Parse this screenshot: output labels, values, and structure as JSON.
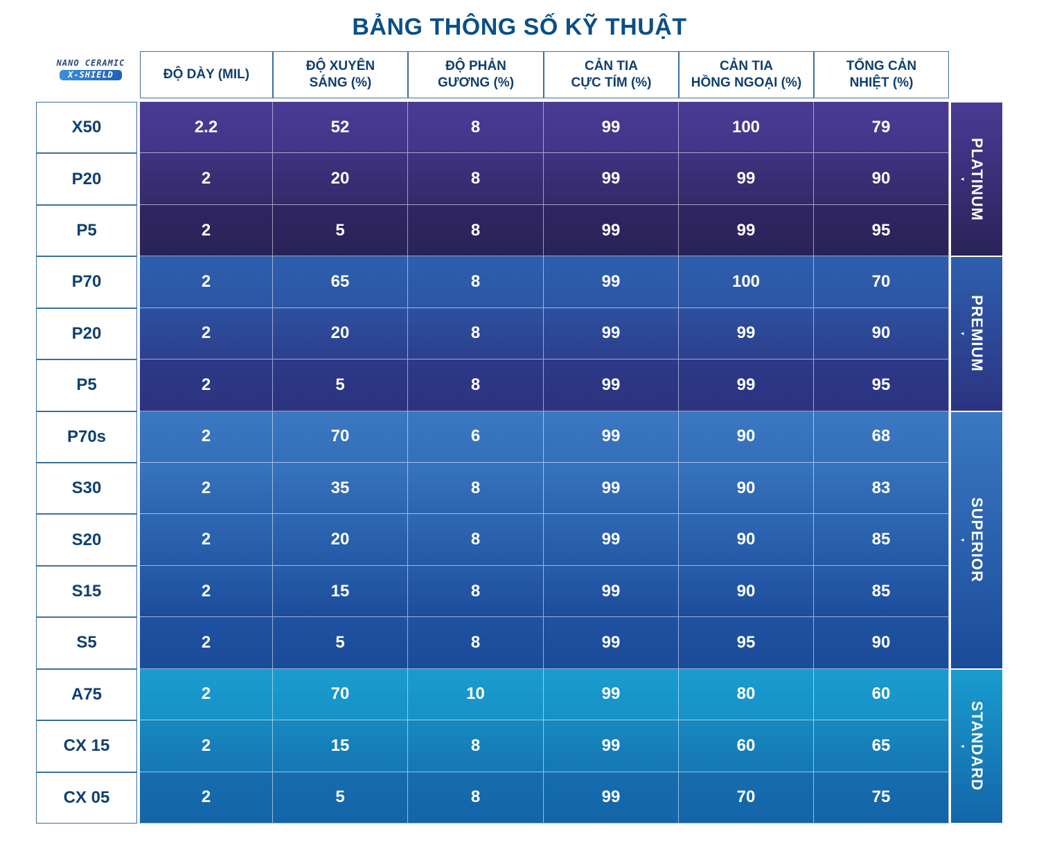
{
  "title": "BẢNG THÔNG SỐ KỸ THUẬT",
  "logo": {
    "line1": "NANO CERAMIC",
    "line2": "X-SHIELD"
  },
  "headers": [
    "ĐỘ DÀY (MIL)",
    "ĐỘ XUYÊN\nSÁNG (%)",
    "ĐỘ PHẢN\nGƯƠNG (%)",
    "CẢN TIA\nCỰC TÍM (%)",
    "CẢN TIA\nHỒNG NGOẠI (%)",
    "TỔNG CẢN\nNHIỆT (%)"
  ],
  "groups": [
    {
      "label": "PLATINUM",
      "colors": [
        "#4a3a95",
        "#2a2358"
      ],
      "rows": [
        {
          "name": "X50",
          "values": [
            "2.2",
            "52",
            "8",
            "99",
            "100",
            "79"
          ]
        },
        {
          "name": "P20",
          "values": [
            "2",
            "20",
            "8",
            "99",
            "99",
            "90"
          ]
        },
        {
          "name": "P5",
          "values": [
            "2",
            "5",
            "8",
            "99",
            "99",
            "95"
          ]
        }
      ]
    },
    {
      "label": "PREMIUM",
      "colors": [
        "#2d5fae",
        "#2c3380"
      ],
      "rows": [
        {
          "name": "P70",
          "values": [
            "2",
            "65",
            "8",
            "99",
            "100",
            "70"
          ]
        },
        {
          "name": "P20",
          "values": [
            "2",
            "20",
            "8",
            "99",
            "99",
            "90"
          ]
        },
        {
          "name": "P5",
          "values": [
            "2",
            "5",
            "8",
            "99",
            "99",
            "95"
          ]
        }
      ]
    },
    {
      "label": "SUPERIOR",
      "colors": [
        "#3b78c2",
        "#1a4b9a"
      ],
      "rows": [
        {
          "name": "P70s",
          "values": [
            "2",
            "70",
            "6",
            "99",
            "90",
            "68"
          ]
        },
        {
          "name": "S30",
          "values": [
            "2",
            "35",
            "8",
            "99",
            "90",
            "83"
          ]
        },
        {
          "name": "S20",
          "values": [
            "2",
            "20",
            "8",
            "99",
            "90",
            "85"
          ]
        },
        {
          "name": "S15",
          "values": [
            "2",
            "15",
            "8",
            "99",
            "90",
            "85"
          ]
        },
        {
          "name": "S5",
          "values": [
            "2",
            "5",
            "8",
            "99",
            "95",
            "90"
          ]
        }
      ]
    },
    {
      "label": "STANDARD",
      "colors": [
        "#199ccf",
        "#1465a8"
      ],
      "rows": [
        {
          "name": "A75",
          "values": [
            "2",
            "70",
            "10",
            "99",
            "80",
            "60"
          ]
        },
        {
          "name": "CX 15",
          "values": [
            "2",
            "15",
            "8",
            "99",
            "60",
            "65"
          ]
        },
        {
          "name": "CX 05",
          "values": [
            "2",
            "5",
            "8",
            "99",
            "70",
            "75"
          ]
        }
      ]
    }
  ]
}
